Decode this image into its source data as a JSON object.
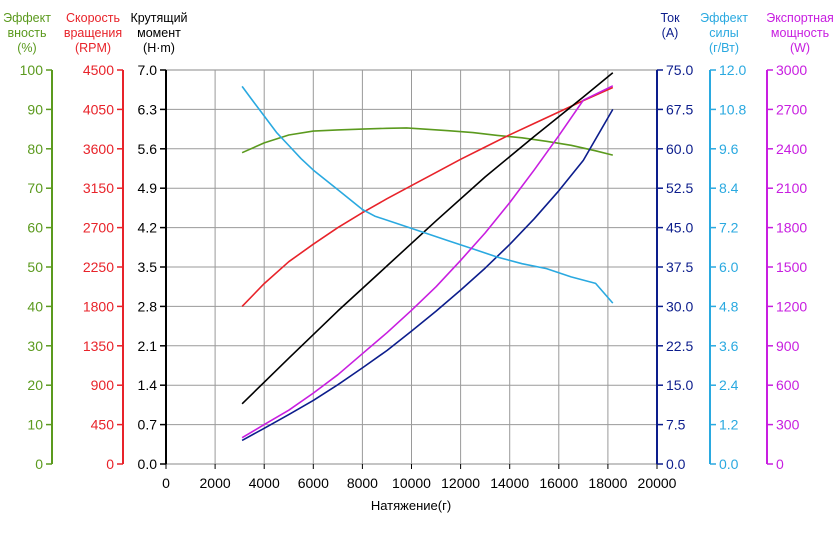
{
  "chart_data": {
    "type": "line",
    "xlabel": "Натяжение(г)",
    "x_ticks": [
      "0",
      "2000",
      "4000",
      "6000",
      "8000",
      "10000",
      "12000",
      "14000",
      "16000",
      "18000",
      "20000"
    ],
    "xlim": [
      0,
      20000
    ],
    "grid": true,
    "axes": [
      {
        "id": "eff",
        "side": "left",
        "title": [
          "Эффект",
          "вность",
          "(%)"
        ],
        "color": "#5b9a1e",
        "min": 0,
        "max": 100,
        "ticks": [
          "0",
          "10",
          "20",
          "30",
          "40",
          "50",
          "60",
          "70",
          "80",
          "90",
          "100"
        ]
      },
      {
        "id": "rpm",
        "side": "left",
        "title": [
          "Скорость",
          "вращения",
          "(RPM)"
        ],
        "color": "#e8232a",
        "min": 0,
        "max": 4500,
        "ticks": [
          "0",
          "450",
          "900",
          "1350",
          "1800",
          "2250",
          "2700",
          "3150",
          "3600",
          "4050",
          "4500"
        ]
      },
      {
        "id": "torque",
        "side": "left",
        "title": [
          "Крутящий",
          "момент",
          "(H·m)"
        ],
        "color": "#000000",
        "min": 0,
        "max": 7,
        "ticks": [
          "0.0",
          "0.7",
          "1.4",
          "2.1",
          "2.8",
          "3.5",
          "4.2",
          "4.9",
          "5.6",
          "6.3",
          "7.0"
        ]
      },
      {
        "id": "current",
        "side": "right",
        "title": [
          "Ток",
          "(A)"
        ],
        "color": "#0c1d8c",
        "min": 0,
        "max": 75,
        "ticks": [
          "0.0",
          "7.5",
          "15.0",
          "22.5",
          "30.0",
          "37.5",
          "45.0",
          "52.5",
          "60.0",
          "67.5",
          "75.0"
        ]
      },
      {
        "id": "force_eff",
        "side": "right",
        "title": [
          "Эффект",
          "силы",
          "(г/Вт)"
        ],
        "color": "#2aa9e0",
        "min": 0,
        "max": 12,
        "ticks": [
          "0.0",
          "1.2",
          "2.4",
          "3.6",
          "4.8",
          "6.0",
          "7.2",
          "8.4",
          "9.6",
          "10.8",
          "12.0"
        ]
      },
      {
        "id": "power",
        "side": "right",
        "title": [
          "Экспортная",
          "мощность",
          "(W)"
        ],
        "color": "#c81ee0",
        "min": 0,
        "max": 3000,
        "ticks": [
          "0",
          "300",
          "600",
          "900",
          "1200",
          "1500",
          "1800",
          "2100",
          "2400",
          "2700",
          "3000"
        ]
      }
    ],
    "series": [
      {
        "axis": "eff",
        "color": "#5b9a1e",
        "x": [
          3100,
          4000,
          5000,
          6000,
          7000,
          8000,
          9000,
          9800,
          10500,
          11500,
          12500,
          13500,
          14500,
          15500,
          16500,
          17500,
          18200
        ],
        "values": [
          79,
          81.5,
          83.5,
          84.5,
          84.8,
          85,
          85.2,
          85.3,
          85,
          84.6,
          84.1,
          83.4,
          82.8,
          81.9,
          80.9,
          79.5,
          78.4
        ]
      },
      {
        "axis": "rpm",
        "color": "#e8232a",
        "x": [
          3100,
          4000,
          5000,
          6000,
          7000,
          8000,
          9000,
          10000,
          11000,
          12000,
          13000,
          14000,
          15000,
          16000,
          17000,
          18200
        ],
        "values": [
          1800,
          2060,
          2310,
          2510,
          2700,
          2870,
          3030,
          3180,
          3330,
          3480,
          3620,
          3760,
          3890,
          4020,
          4150,
          4300
        ]
      },
      {
        "axis": "torque",
        "color": "#000000",
        "x": [
          3100,
          5000,
          7000,
          9000,
          11000,
          13000,
          15000,
          17000,
          18200
        ],
        "values": [
          1.07,
          1.88,
          2.72,
          3.52,
          4.32,
          5.1,
          5.82,
          6.52,
          6.95
        ]
      },
      {
        "axis": "current",
        "color": "#0c1d8c",
        "x": [
          3100,
          4000,
          5000,
          6000,
          7000,
          8000,
          9000,
          10000,
          11000,
          12000,
          13000,
          14000,
          15000,
          16000,
          17000,
          18200
        ],
        "values": [
          4.5,
          6.8,
          9.4,
          12.1,
          15.1,
          18.3,
          21.6,
          25.3,
          29.1,
          33.1,
          37.3,
          41.8,
          46.7,
          52,
          57.8,
          67.5
        ]
      },
      {
        "axis": "force_eff",
        "color": "#2aa9e0",
        "x": [
          3100,
          3500,
          4000,
          4500,
          5000,
          5500,
          6000,
          7000,
          8000,
          8500,
          9500,
          10500,
          11500,
          12500,
          13500,
          14500,
          15500,
          16500,
          17500,
          18200
        ],
        "values": [
          11.5,
          11.1,
          10.6,
          10.1,
          9.7,
          9.3,
          8.95,
          8.35,
          7.75,
          7.55,
          7.3,
          7.05,
          6.8,
          6.55,
          6.3,
          6.1,
          5.95,
          5.7,
          5.5,
          4.9
        ]
      },
      {
        "axis": "power",
        "color": "#c81ee0",
        "x": [
          3100,
          4000,
          5000,
          6000,
          7000,
          8000,
          9000,
          10000,
          11000,
          12000,
          13000,
          14000,
          15000,
          16000,
          17000,
          18200
        ],
        "values": [
          200,
          300,
          410,
          540,
          680,
          840,
          1000,
          1170,
          1350,
          1550,
          1760,
          1990,
          2240,
          2500,
          2770,
          2880
        ]
      }
    ]
  }
}
